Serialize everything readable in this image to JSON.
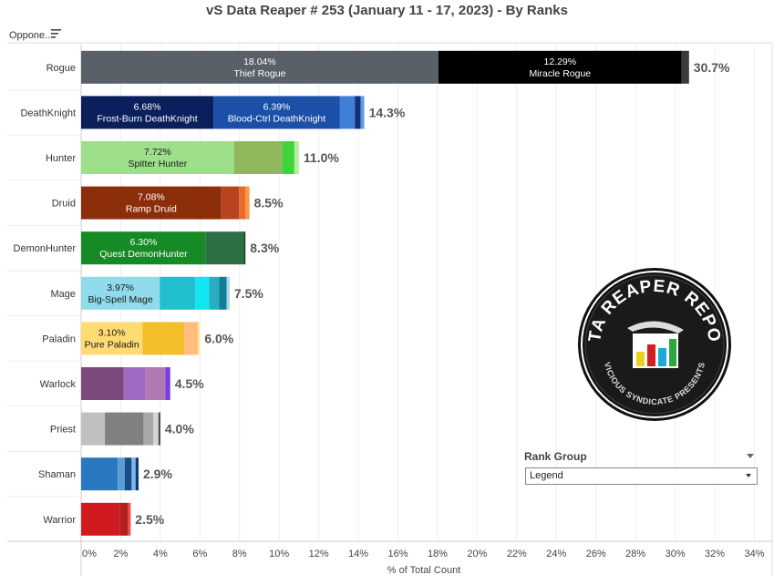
{
  "title": "vS Data Reaper #  253 (January 11 - 17, 2023) - By Ranks",
  "opponent_header": "Oppone..",
  "icons": {
    "sort": "sort-icon",
    "logo": "data-reaper-report-logo",
    "dropdown": "chevron-down-icon",
    "menu": "caret-down-icon"
  },
  "logo_text": {
    "top": "DATA REAPER REPORT",
    "bottom": "VICIOUS SYNDICATE PRESENTS"
  },
  "rank_group": {
    "title": "Rank Group",
    "selected": "Legend"
  },
  "chart_data": {
    "type": "bar",
    "orientation": "horizontal",
    "stacked": true,
    "xlabel": "% of Total Count",
    "xlim": [
      0,
      34
    ],
    "xticks": [
      "0%",
      "2%",
      "4%",
      "6%",
      "8%",
      "10%",
      "12%",
      "14%",
      "16%",
      "18%",
      "20%",
      "22%",
      "24%",
      "26%",
      "28%",
      "30%",
      "32%",
      "34%"
    ],
    "grid": true,
    "categories": [
      "Rogue",
      "DeathKnight",
      "Hunter",
      "Druid",
      "DemonHunter",
      "Mage",
      "Paladin",
      "Warlock",
      "Priest",
      "Shaman",
      "Warrior"
    ],
    "totals": [
      "30.7%",
      "14.3%",
      "11.0%",
      "8.5%",
      "8.3%",
      "7.5%",
      "6.0%",
      "4.5%",
      "4.0%",
      "2.9%",
      "2.5%"
    ],
    "bars": [
      {
        "category": "Rogue",
        "segments": [
          {
            "value": 18.04,
            "label": "Thief Rogue",
            "pct": "18.04%",
            "color": "#5a6068",
            "text_color": "#ffffff"
          },
          {
            "value": 12.29,
            "label": "Miracle Rogue",
            "pct": "12.29%",
            "color": "#000000",
            "text_color": "#ffffff"
          },
          {
            "value": 0.37,
            "color": "#3a3a3a"
          }
        ]
      },
      {
        "category": "DeathKnight",
        "segments": [
          {
            "value": 6.68,
            "label": "Frost-Burn DeathKnight",
            "pct": "6.68%",
            "color": "#0a1f5c",
            "text_color": "#ffffff"
          },
          {
            "value": 6.39,
            "label": "Blood-Ctrl DeathKnight",
            "pct": "6.39%",
            "color": "#1b4fa8",
            "text_color": "#ffffff"
          },
          {
            "value": 0.75,
            "color": "#3f7fd8"
          },
          {
            "value": 0.3,
            "color": "#12307a"
          },
          {
            "value": 0.18,
            "color": "#5d9be6"
          }
        ]
      },
      {
        "category": "Hunter",
        "segments": [
          {
            "value": 7.72,
            "label": "Spitter Hunter",
            "pct": "7.72%",
            "color": "#9ddf8a",
            "text_color": "#1a1a1a"
          },
          {
            "value": 2.45,
            "color": "#90b85a"
          },
          {
            "value": 0.6,
            "color": "#3cd63c"
          },
          {
            "value": 0.23,
            "color": "#b8ee9a"
          }
        ]
      },
      {
        "category": "Druid",
        "segments": [
          {
            "value": 7.08,
            "label": "Ramp Druid",
            "pct": "7.08%",
            "color": "#8c2e0a",
            "text_color": "#ffffff"
          },
          {
            "value": 0.9,
            "color": "#b8451f"
          },
          {
            "value": 0.32,
            "color": "#e86a2a"
          },
          {
            "value": 0.2,
            "color": "#f59a45"
          }
        ]
      },
      {
        "category": "DemonHunter",
        "segments": [
          {
            "value": 6.3,
            "label": "Quest DemonHunter",
            "pct": "6.30%",
            "color": "#168a24",
            "text_color": "#ffffff"
          },
          {
            "value": 1.9,
            "color": "#2e6e45"
          },
          {
            "value": 0.1,
            "color": "#1d4d2e"
          }
        ]
      },
      {
        "category": "Mage",
        "segments": [
          {
            "value": 3.97,
            "label": "Big-Spell Mage",
            "pct": "3.97%",
            "color": "#8fdbeb",
            "text_color": "#1a1a1a"
          },
          {
            "value": 1.8,
            "color": "#21bfcf"
          },
          {
            "value": 0.7,
            "color": "#13e6f2"
          },
          {
            "value": 0.5,
            "color": "#28aec0"
          },
          {
            "value": 0.38,
            "color": "#0f7e96"
          },
          {
            "value": 0.15,
            "color": "#a8d8e6"
          }
        ]
      },
      {
        "category": "Paladin",
        "segments": [
          {
            "value": 3.1,
            "label": "Pure Paladin",
            "pct": "3.10%",
            "color": "#ffdb73",
            "text_color": "#1a1a1a"
          },
          {
            "value": 2.1,
            "color": "#f2be2a"
          },
          {
            "value": 0.7,
            "color": "#ffbc7d"
          },
          {
            "value": 0.1,
            "color": "#ffe9a0"
          }
        ]
      },
      {
        "category": "Warlock",
        "segments": [
          {
            "value": 2.15,
            "color": "#7c4a7c"
          },
          {
            "value": 1.1,
            "color": "#a06ac2"
          },
          {
            "value": 1.0,
            "color": "#b07ab0"
          },
          {
            "value": 0.25,
            "color": "#7a3ed6"
          }
        ]
      },
      {
        "category": "Priest",
        "segments": [
          {
            "value": 1.2,
            "color": "#c0c0c0"
          },
          {
            "value": 1.95,
            "color": "#808080"
          },
          {
            "value": 0.5,
            "color": "#a8a8a8"
          },
          {
            "value": 0.25,
            "color": "#d6d6d6"
          },
          {
            "value": 0.1,
            "color": "#4a4a4a"
          }
        ]
      },
      {
        "category": "Shaman",
        "segments": [
          {
            "value": 1.85,
            "color": "#2a78c0"
          },
          {
            "value": 0.35,
            "color": "#5b9ed6"
          },
          {
            "value": 0.35,
            "color": "#1a4d8c"
          },
          {
            "value": 0.2,
            "color": "#7fb6e8"
          },
          {
            "value": 0.15,
            "color": "#0f3a6e"
          }
        ]
      },
      {
        "category": "Warrior",
        "segments": [
          {
            "value": 1.95,
            "color": "#d11a20"
          },
          {
            "value": 0.4,
            "color": "#b22020"
          },
          {
            "value": 0.15,
            "color": "#e84a4a"
          }
        ]
      }
    ]
  }
}
